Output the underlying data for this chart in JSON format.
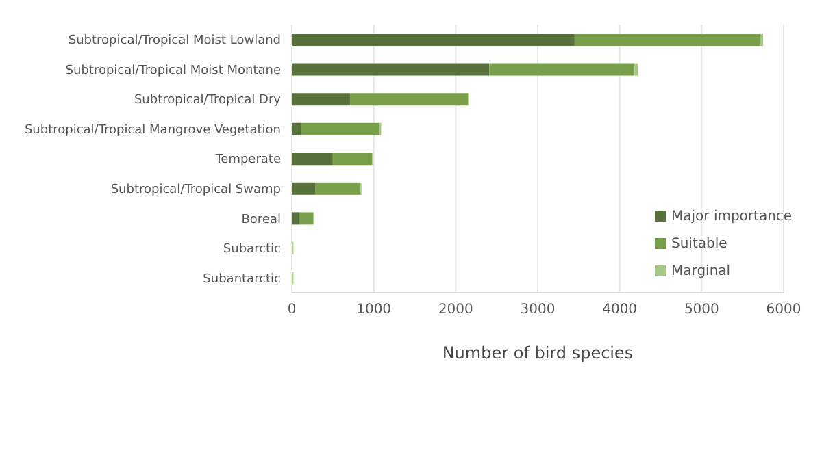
{
  "chart_data": {
    "type": "bar",
    "orientation": "horizontal",
    "stacked": true,
    "xlabel": "Number of bird species",
    "categories": [
      "Subtropical/Tropical Moist Lowland",
      "Subtropical/Tropical Moist Montane",
      "Subtropical/Tropical Dry",
      "Subtropical/Tropical Mangrove Vegetation",
      "Temperate",
      "Subtropical/Tropical Swamp",
      "Boreal",
      "Subarctic",
      "Subantarctic"
    ],
    "series": [
      {
        "name": "Major importance",
        "color": "#56723a",
        "values": [
          3450,
          2410,
          710,
          110,
          500,
          290,
          90,
          0,
          0
        ]
      },
      {
        "name": "Suitable",
        "color": "#7a9f4a",
        "values": [
          2260,
          1770,
          1440,
          960,
          480,
          550,
          170,
          10,
          10
        ]
      },
      {
        "name": "Marginal",
        "color": "#a6c785",
        "values": [
          40,
          40,
          10,
          20,
          10,
          10,
          10,
          10,
          10
        ]
      }
    ],
    "xlim": [
      0,
      6000
    ],
    "xticks": [
      0,
      1000,
      2000,
      3000,
      4000,
      5000,
      6000
    ],
    "grid": "x",
    "legend": "bottom right"
  }
}
